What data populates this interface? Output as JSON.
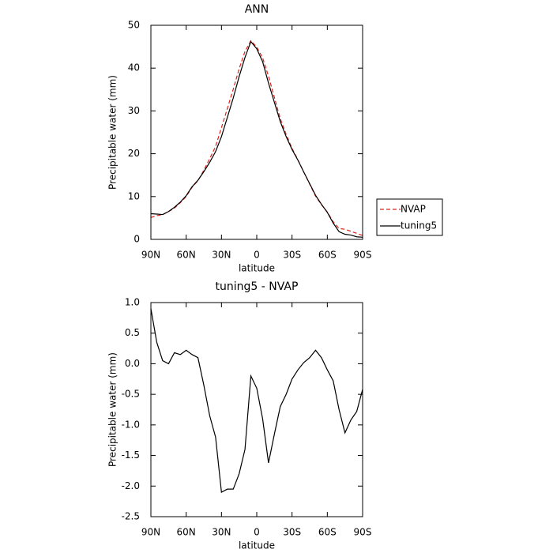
{
  "chart_data": [
    {
      "type": "line",
      "title": "ANN",
      "xlabel": "latitude",
      "ylabel": "Precipitable water (mm)",
      "x": [
        90,
        85,
        80,
        75,
        70,
        65,
        60,
        55,
        50,
        45,
        40,
        35,
        30,
        25,
        20,
        15,
        10,
        5,
        0,
        -5,
        -10,
        -15,
        -20,
        -25,
        -30,
        -35,
        -40,
        -45,
        -50,
        -55,
        -60,
        -65,
        -70,
        -75,
        -80,
        -85,
        -90
      ],
      "series": [
        {
          "name": "NVAP",
          "color": "#e0201b",
          "style": "dashed",
          "values": [
            5.1,
            5.55,
            5.75,
            6.5,
            7.3,
            8.55,
            10.0,
            12.15,
            13.7,
            16.15,
            18.85,
            21.7,
            26.1,
            30.55,
            35.05,
            39.8,
            43.9,
            46.4,
            44.9,
            42.4,
            38.1,
            33.15,
            28.2,
            24.5,
            21.25,
            18.6,
            15.7,
            12.9,
            10.1,
            8.1,
            6.4,
            4.1,
            2.55,
            2.35,
            1.9,
            1.4,
            0.9
          ]
        },
        {
          "name": "tuning5",
          "color": "#000000",
          "style": "solid",
          "values": [
            6.0,
            5.9,
            5.8,
            6.5,
            7.5,
            8.7,
            10.2,
            12.3,
            13.8,
            15.8,
            18.0,
            20.5,
            24.0,
            28.5,
            33.0,
            38.0,
            42.5,
            46.2,
            44.5,
            41.5,
            36.5,
            32.0,
            27.5,
            24.0,
            21.0,
            18.5,
            15.7,
            13.0,
            10.3,
            8.2,
            6.3,
            3.8,
            1.8,
            1.2,
            1.0,
            0.6,
            0.5
          ]
        }
      ],
      "xlim": [
        90,
        -90
      ],
      "xticks": [
        {
          "value": 90,
          "label": "90N"
        },
        {
          "value": 60,
          "label": "60N"
        },
        {
          "value": 30,
          "label": "30N"
        },
        0,
        {
          "value": -30,
          "label": "30S"
        },
        {
          "value": -60,
          "label": "60S"
        },
        {
          "value": -90,
          "label": "90S"
        }
      ],
      "ylim": [
        0,
        50
      ],
      "yticks": [
        0,
        10,
        20,
        30,
        40,
        50
      ],
      "legend": "right"
    },
    {
      "type": "line",
      "title": "tuning5 - NVAP",
      "xlabel": "latitude",
      "ylabel": "Precipitable water (mm)",
      "x": [
        90,
        85,
        80,
        75,
        70,
        65,
        60,
        55,
        50,
        45,
        40,
        35,
        30,
        25,
        20,
        15,
        10,
        5,
        0,
        -5,
        -10,
        -15,
        -20,
        -25,
        -30,
        -35,
        -40,
        -45,
        -50,
        -55,
        -60,
        -65,
        -70,
        -75,
        -80,
        -85,
        -90
      ],
      "color": "#000000",
      "values": [
        0.9,
        0.35,
        0.05,
        0.0,
        0.18,
        0.15,
        0.22,
        0.15,
        0.1,
        -0.35,
        -0.85,
        -1.2,
        -2.1,
        -2.05,
        -2.05,
        -1.8,
        -1.4,
        -0.2,
        -0.4,
        -0.9,
        -1.62,
        -1.15,
        -0.7,
        -0.5,
        -0.25,
        -0.1,
        0.02,
        0.1,
        0.22,
        0.1,
        -0.1,
        -0.28,
        -0.75,
        -1.13,
        -0.92,
        -0.78,
        -0.42
      ],
      "xlim": [
        90,
        -90
      ],
      "xticks": [
        {
          "value": 90,
          "label": "90N"
        },
        {
          "value": 60,
          "label": "60N"
        },
        {
          "value": 30,
          "label": "30N"
        },
        0,
        {
          "value": -30,
          "label": "30S"
        },
        {
          "value": -60,
          "label": "60S"
        },
        {
          "value": -90,
          "label": "90S"
        }
      ],
      "ylim": [
        -2.5,
        1
      ],
      "yticks": [
        -2.5,
        {
          "value": -2,
          "label": "-2.0"
        },
        -1.5,
        {
          "value": -1,
          "label": "-1.0"
        },
        -0.5,
        {
          "value": 0,
          "label": "0.0"
        },
        0.5,
        {
          "value": 1,
          "label": "1.0"
        }
      ]
    }
  ]
}
